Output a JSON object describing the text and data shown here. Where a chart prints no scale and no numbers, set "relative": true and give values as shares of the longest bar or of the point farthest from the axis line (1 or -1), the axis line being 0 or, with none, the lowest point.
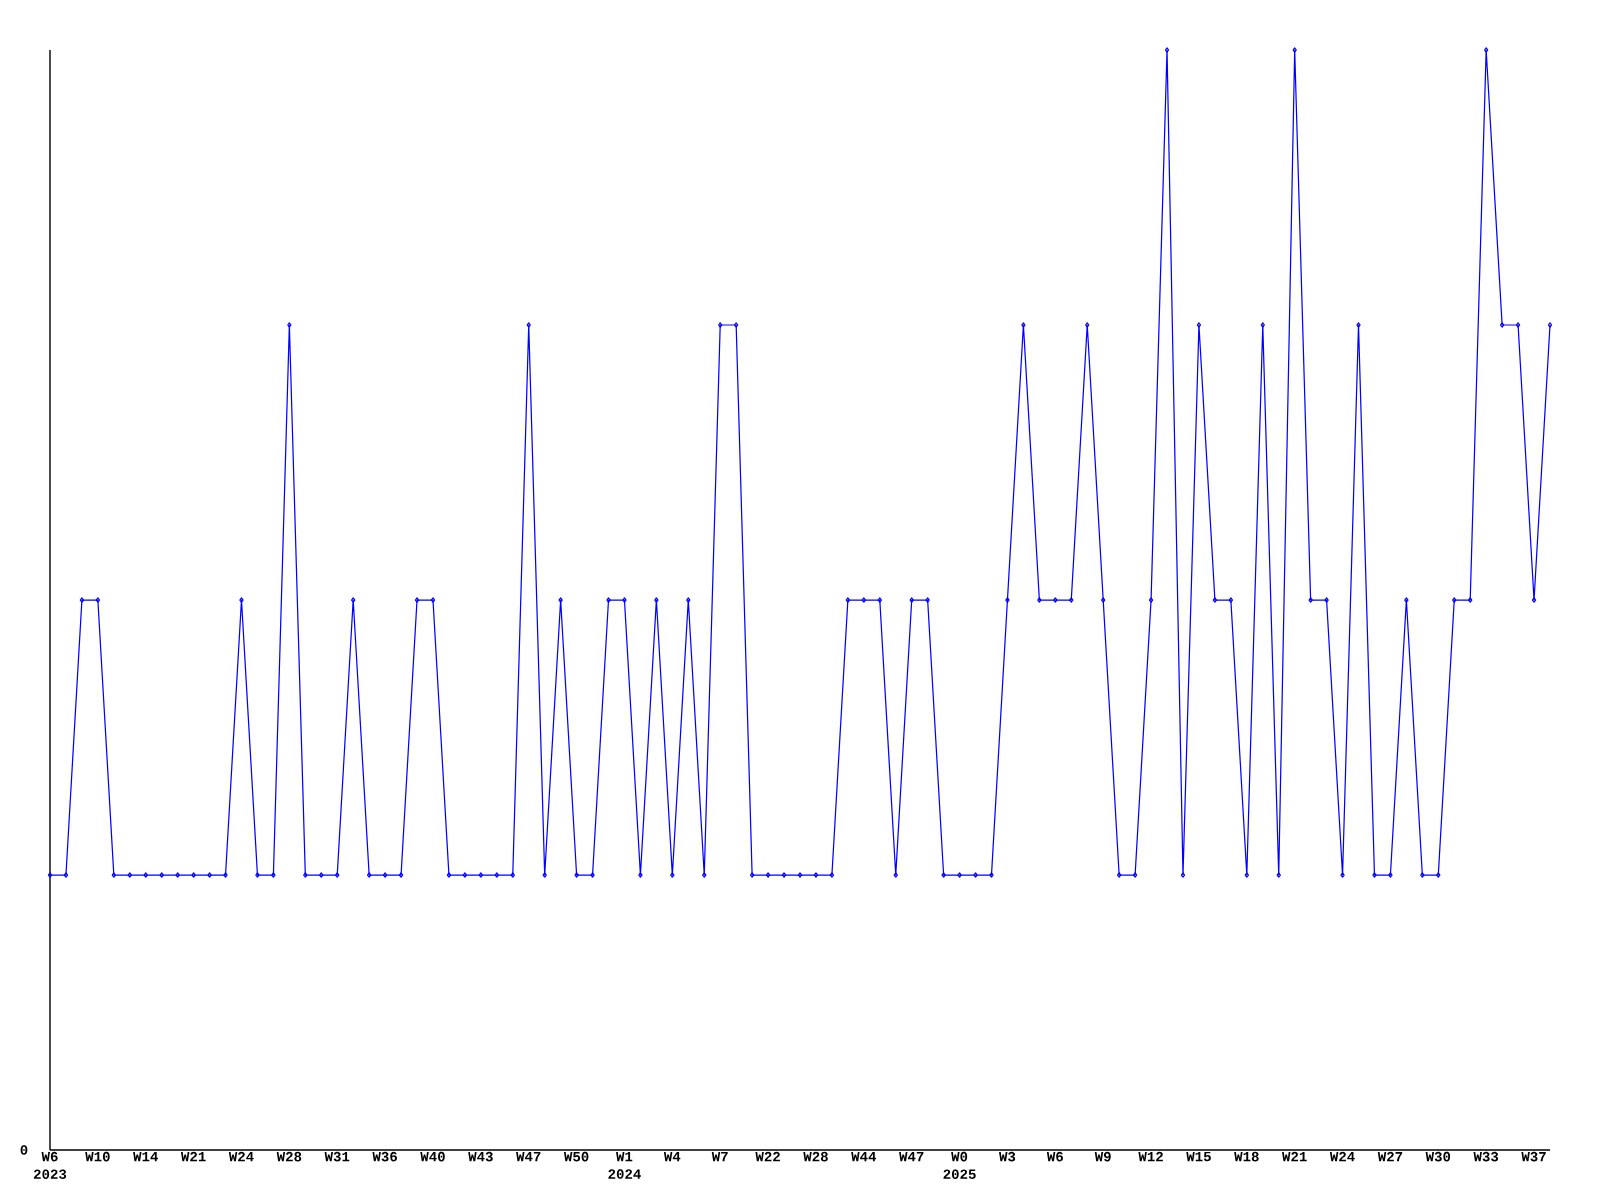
{
  "chart_data": {
    "type": "line",
    "relative": true,
    "marker": "diamond",
    "line_style": "solid",
    "categories": [
      "W6 2023",
      null,
      null,
      "W10",
      null,
      null,
      "W14",
      null,
      null,
      "W21",
      null,
      null,
      "W24",
      null,
      null,
      "W28",
      null,
      null,
      "W31",
      null,
      null,
      "W36",
      null,
      null,
      "W40",
      null,
      null,
      "W43",
      null,
      null,
      "W47",
      null,
      null,
      "W50",
      null,
      null,
      "W1 2024",
      null,
      null,
      "W4",
      null,
      null,
      "W7",
      null,
      null,
      "W22",
      null,
      null,
      "W28",
      null,
      null,
      "W44",
      null,
      null,
      "W47",
      null,
      null,
      "W0 2025",
      null,
      null,
      "W3",
      null,
      null,
      "W6",
      null,
      null,
      "W9",
      null,
      null,
      "W12",
      null,
      null,
      "W15",
      null,
      null,
      "W18",
      null,
      null,
      "W21",
      null,
      null,
      "W24",
      null,
      null,
      "W27",
      null,
      null,
      "W30",
      null,
      null,
      "W33",
      null,
      null,
      "W37",
      null
    ],
    "series": [
      {
        "color": "#0000ff",
        "values": [
          0.25,
          0.25,
          0.5,
          0.5,
          0.25,
          0.25,
          0.25,
          0.25,
          0.25,
          0.25,
          0.25,
          0.25,
          0.5,
          0.25,
          0.25,
          0.75,
          0.25,
          0.25,
          0.25,
          0.5,
          0.25,
          0.25,
          0.25,
          0.5,
          0.5,
          0.25,
          0.25,
          0.25,
          0.25,
          0.25,
          0.75,
          0.25,
          0.5,
          0.25,
          0.25,
          0.5,
          0.5,
          0.25,
          0.5,
          0.25,
          0.5,
          0.25,
          0.75,
          0.75,
          0.25,
          0.25,
          0.25,
          0.25,
          0.25,
          0.25,
          0.5,
          0.5,
          0.5,
          0.25,
          0.5,
          0.5,
          0.25,
          0.25,
          0.25,
          0.25,
          0.5,
          0.75,
          0.5,
          0.5,
          0.5,
          0.75,
          0.5,
          0.25,
          0.25,
          0.5,
          1,
          0.25,
          0.75,
          0.5,
          0.5,
          0.25,
          0.75,
          0.25,
          1,
          0.5,
          0.5,
          0.25,
          0.75,
          0.25,
          0.25,
          0.5,
          0.25,
          0.25,
          0.5,
          0.5,
          1,
          0.75,
          0.75,
          0.5,
          0.75
        ]
      }
    ],
    "annotations": [
      "0"
    ]
  }
}
